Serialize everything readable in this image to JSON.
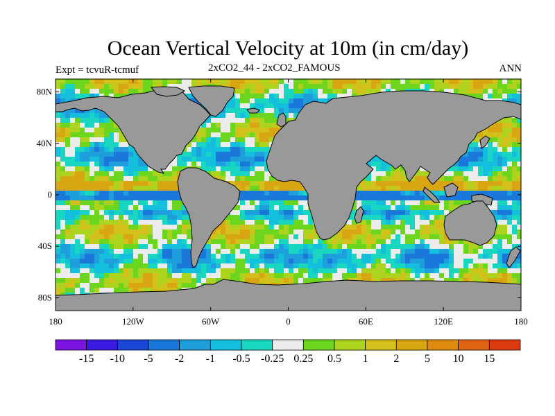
{
  "header": {
    "title": "Ocean Vertical Velocity at 10m (in cm/day)",
    "subtitle": "2xCO2_44 - 2xCO2_FAMOUS",
    "left_label": "Expt = tcvuR-tcmuf",
    "right_label": "ANN"
  },
  "map": {
    "land_color": "#999999",
    "ocean_fallback_color": "#d8d8d8",
    "lat_ticks": [
      {
        "lat": 80,
        "label": "80N"
      },
      {
        "lat": 40,
        "label": "40N"
      },
      {
        "lat": 0,
        "label": "0"
      },
      {
        "lat": -40,
        "label": "40S"
      },
      {
        "lat": -80,
        "label": "80S"
      }
    ],
    "lon_ticks": [
      {
        "lon": -180,
        "label": "180"
      },
      {
        "lon": -120,
        "label": "120W"
      },
      {
        "lon": -60,
        "label": "60W"
      },
      {
        "lon": 0,
        "label": "0"
      },
      {
        "lon": 60,
        "label": "60E"
      },
      {
        "lon": 120,
        "label": "120E"
      },
      {
        "lon": 180,
        "label": "180"
      }
    ]
  },
  "colorbar": {
    "colors": [
      "#7b14e0",
      "#3a1adf",
      "#1a47d6",
      "#1a78db",
      "#1e9fdb",
      "#13bfdc",
      "#18d6c0",
      "#ececec",
      "#6cd61f",
      "#acd41f",
      "#d3c01a",
      "#d8a612",
      "#df8a0e",
      "#e06412",
      "#dc3a10"
    ],
    "labels": [
      "-15",
      "-10",
      "-5",
      "-2",
      "-1",
      "-0.5",
      "-0.25",
      "0.25",
      "0.5",
      "1",
      "2",
      "5",
      "10",
      "15"
    ]
  }
}
